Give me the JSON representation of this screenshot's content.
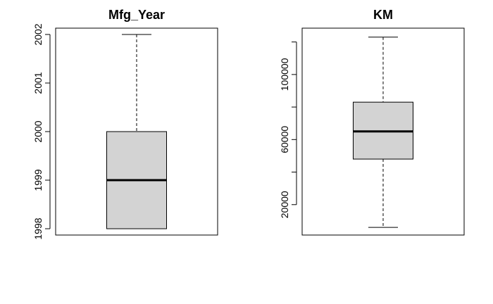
{
  "chart_data": [
    {
      "type": "boxplot",
      "title": "Mfg_Year",
      "ylim": [
        1997.87,
        2002.13
      ],
      "yticks": [
        1998,
        1999,
        2000,
        2001,
        2002
      ],
      "ytick_labels": [
        "1998",
        "1999",
        "2000",
        "2001",
        "2002"
      ],
      "stats": {
        "min": 1998,
        "q1": 1998,
        "median": 1999,
        "q3": 2000,
        "max": 2002
      },
      "box_color": "#d3d3d3"
    },
    {
      "type": "boxplot",
      "title": "KM",
      "ylim": [
        1300,
        128500
      ],
      "yticks": [
        20000,
        60000,
        100000
      ],
      "ytick_labels": [
        "20000",
        "60000",
        "100000"
      ],
      "minor_yticks": [
        40000,
        80000,
        120000
      ],
      "stats": {
        "min": 6000,
        "q1": 48000,
        "median": 65000,
        "q3": 83000,
        "max": 123000
      },
      "box_color": "#d3d3d3"
    }
  ]
}
